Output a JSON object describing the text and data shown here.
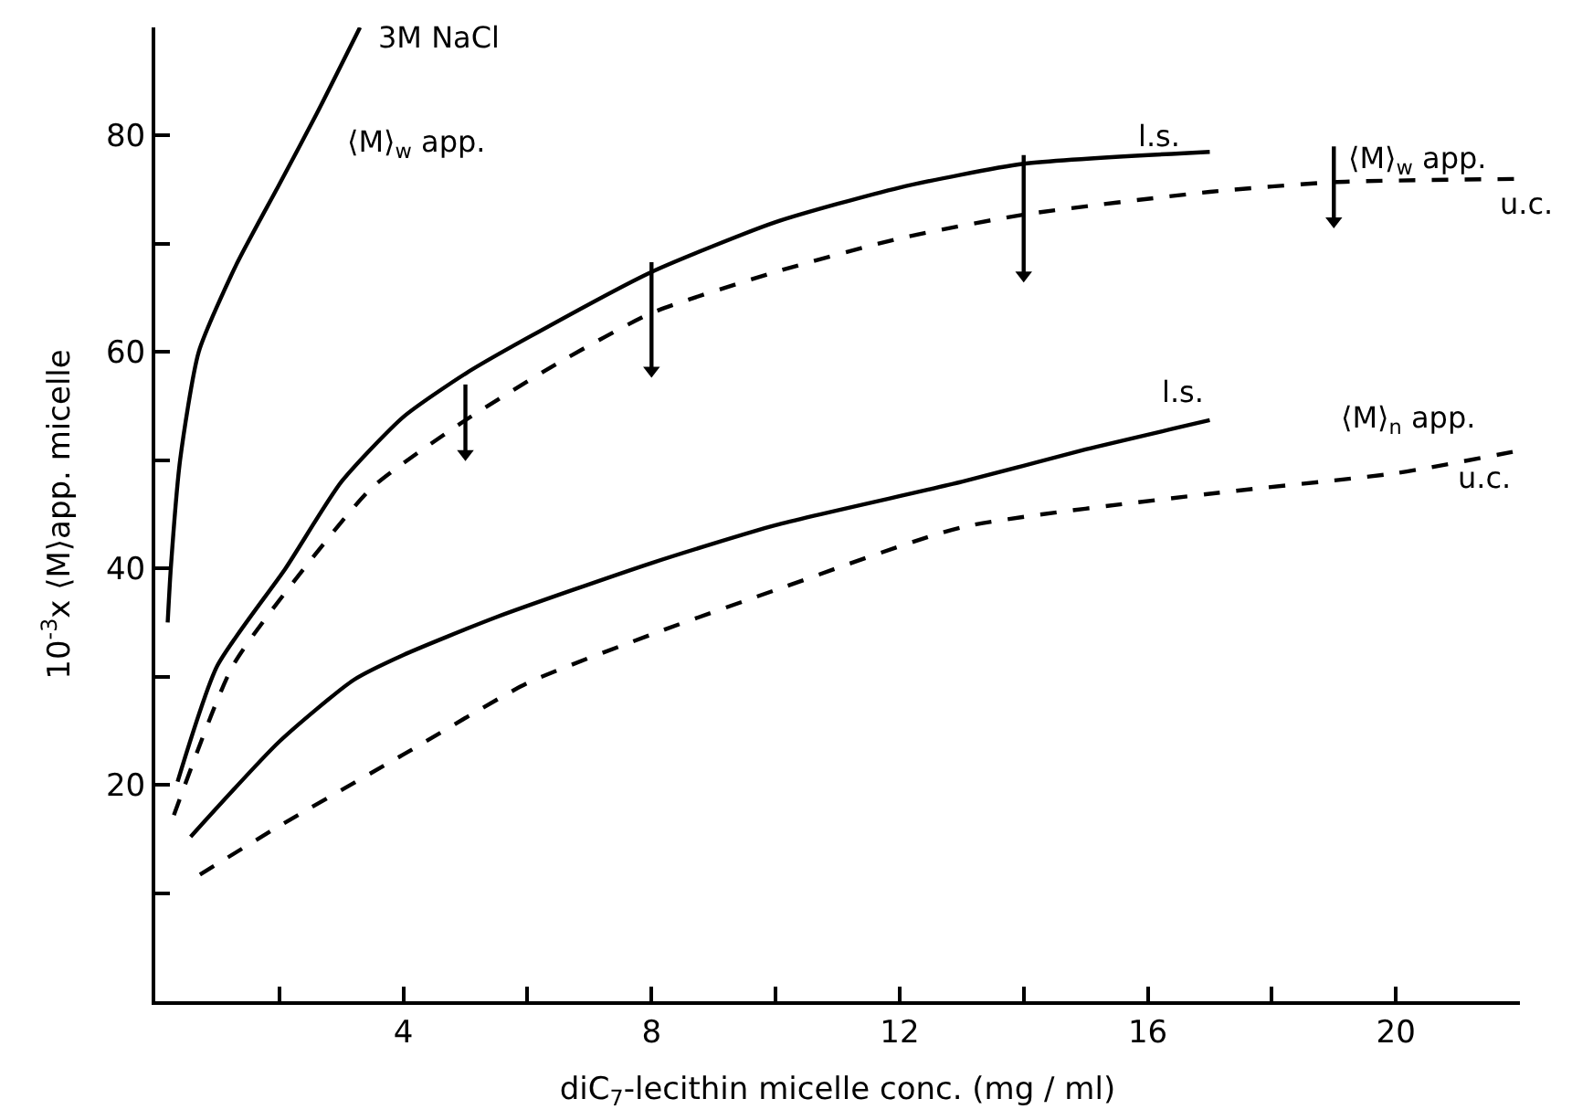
{
  "chart_data": {
    "type": "line",
    "xlabel": "diC$_{7}$-lecithin micelle conc. (mg / ml)",
    "ylabel": "10$^{-3}$x ⟨M⟩app. micelle",
    "xlim": [
      0,
      22
    ],
    "ylim": [
      0,
      90
    ],
    "xticks": [
      {
        "value": 2,
        "label": null
      },
      4,
      {
        "value": 6,
        "label": null
      },
      8,
      {
        "value": 10,
        "label": null
      },
      12,
      {
        "value": 14,
        "label": null
      },
      16,
      {
        "value": 18,
        "label": null
      },
      20
    ],
    "yticks": [
      {
        "value": 10,
        "label": null
      },
      20,
      {
        "value": 30,
        "label": null
      },
      40,
      {
        "value": 50,
        "label": null
      },
      60,
      {
        "value": 70,
        "label": null
      },
      80
    ],
    "marker": "none",
    "series": [
      {
        "color": "#000000",
        "line_style": "solid",
        "x": [
          0.2,
          0.25,
          0.4,
          0.7,
          1.3,
          2.0,
          2.6,
          3.3
        ],
        "values": [
          35,
          40,
          50,
          60,
          68,
          75.5,
          82,
          90
        ]
      },
      {
        "color": "#000000",
        "line_style": "solid",
        "x": [
          0.36,
          1,
          2.1,
          3,
          4,
          5,
          6,
          8,
          10,
          12,
          14,
          17
        ],
        "values": [
          20.3,
          31,
          40,
          48,
          54,
          58,
          61.3,
          67.4,
          72,
          75.2,
          77.4,
          78.5
        ]
      },
      {
        "color": "#000000",
        "line_style": "dashed",
        "x": [
          0.3,
          1.25,
          2.4,
          3.5,
          5,
          6.5,
          8,
          10,
          12,
          14,
          17,
          19,
          22
        ],
        "values": [
          17.2,
          31,
          40,
          47.5,
          53.7,
          59,
          63.6,
          67.4,
          70.5,
          72.7,
          74.8,
          75.7,
          76
        ]
      },
      {
        "color": "#000000",
        "line_style": "solid",
        "x": [
          0.57,
          2,
          3.2,
          4,
          5.5,
          8,
          10,
          13,
          15,
          17
        ],
        "values": [
          15.2,
          24,
          29.7,
          32,
          35.5,
          40.5,
          44,
          48,
          51,
          53.7
        ]
      },
      {
        "color": "#000000",
        "line_style": "dashed",
        "x": [
          0.72,
          2,
          4,
          6,
          8,
          10,
          13,
          17,
          20,
          22
        ],
        "values": [
          11.7,
          16.2,
          22.8,
          29.4,
          33.9,
          38,
          43.8,
          46.9,
          48.8,
          50.9
        ]
      },
      {
        "type": "scatter",
        "marker": "triangle",
        "color": "#000000",
        "x": [
          5,
          8,
          14,
          19
        ],
        "values": [
          50.6,
          58.3,
          67.1,
          72.1
        ],
        "errors": [
          [
            50.6,
            57
          ],
          [
            58.3,
            68.3
          ],
          [
            67.1,
            78.2
          ],
          [
            72.1,
            79
          ]
        ]
      }
    ],
    "annotations": [
      {
        "text": "3M NaCl",
        "x": 3.3,
        "y": 90
      },
      {
        "text": "⟨M⟩$_{w}$ app.",
        "x": 2.6,
        "y": 82
      },
      {
        "text": "l.s.",
        "x": 17,
        "y": 78.5
      },
      {
        "text": "⟨M⟩$_{w}$ app.",
        "x": 19,
        "y": 75.7
      },
      {
        "text": "u.c.",
        "x": 22,
        "y": 76
      },
      {
        "text": "l.s.",
        "x": 17,
        "y": 53.7
      },
      {
        "text": "⟨M⟩$_{n}$ app.",
        "x": 20,
        "y": 48.8
      },
      {
        "text": "u.c.",
        "x": 22,
        "y": 50.9
      }
    ]
  }
}
